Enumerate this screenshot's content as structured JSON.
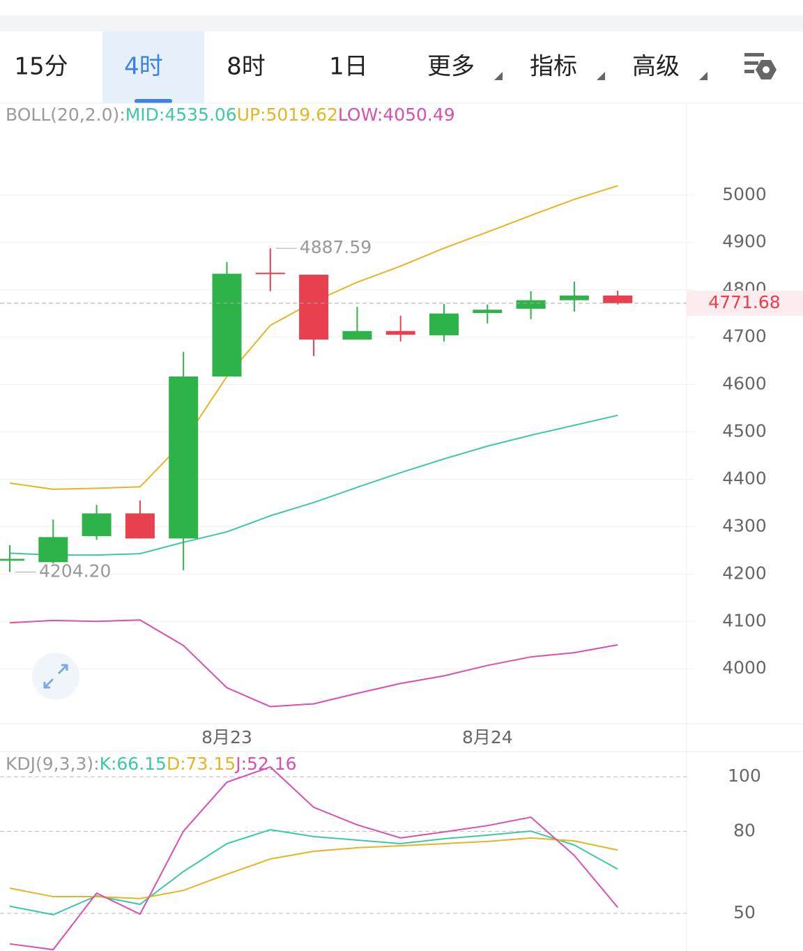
{
  "tabs": {
    "items": [
      "15分",
      "4时",
      "8时",
      "1日",
      "更多",
      "指标",
      "高级"
    ],
    "active": 1,
    "dropdown": [
      false,
      false,
      false,
      false,
      true,
      true,
      true
    ]
  },
  "chart_data": [
    {
      "type": "candlestick",
      "header": [
        "BOLL(20,2.0):",
        "MID:4535.06",
        "UP:5019.62",
        "LOW:4050.49"
      ],
      "header_color": "#9a9a9a",
      "categories": [
        null,
        null,
        null,
        null,
        null,
        "8月23",
        null,
        null,
        null,
        null,
        null,
        "8月24",
        null,
        null,
        null
      ],
      "open": [
        4228,
        4225,
        4280,
        4328,
        4275,
        4617,
        4836,
        4832,
        4695,
        4713,
        4704,
        4751,
        4760,
        4778,
        4788
      ],
      "high": [
        4261,
        4315,
        4346,
        4355,
        4669,
        4859,
        4887.59,
        4832,
        4764,
        4745,
        4770,
        4769,
        4797,
        4817,
        4798
      ],
      "low": [
        4204.2,
        4222,
        4272,
        4275,
        4208,
        4617,
        4797,
        4660,
        4695,
        4691,
        4691,
        4729,
        4738,
        4754,
        4769
      ],
      "close": [
        4232,
        4278,
        4328,
        4275,
        4617,
        4834,
        4833,
        4695,
        4713,
        4705,
        4750,
        4758,
        4778,
        4788,
        4771.68
      ],
      "up_color": "#2db34a",
      "down_color": "#e8404f",
      "series": [
        {
          "name": "MID",
          "color": "#3cc8a8",
          "values": [
            4244,
            4240,
            4240,
            4243,
            4267,
            4289,
            4323,
            4351,
            4383,
            4414,
            4443,
            4470,
            4493,
            4514,
            4535.06
          ]
        },
        {
          "name": "UP",
          "color": "#e6b422",
          "values": [
            4392,
            4379,
            4381,
            4384,
            4479,
            4617,
            4725,
            4775,
            4816,
            4850,
            4888,
            4922,
            4957,
            4991,
            5019.62
          ]
        },
        {
          "name": "LOW",
          "color": "#d84fb0",
          "values": [
            4097,
            4102,
            4100,
            4103,
            4049,
            3960,
            3920,
            3926,
            3948,
            3969,
            3985,
            4007,
            4025,
            4034,
            4050.49
          ]
        }
      ],
      "annotations": [
        {
          "label": "4887.59",
          "value": 4887.59
        },
        {
          "label": "4204.20",
          "value": 4204.2
        }
      ],
      "ylim": [
        3884,
        5194
      ],
      "yticks": [
        4000,
        4100,
        4200,
        4300,
        4400,
        4500,
        4600,
        4700,
        4800,
        4900,
        5000
      ],
      "grid": true
    },
    {
      "type": "line",
      "header": [
        "KDJ(9,3,3):",
        "K:66.15",
        "D:73.15",
        "J:52.16"
      ],
      "header_color": "#9a9a9a",
      "series": [
        {
          "name": "K",
          "color": "#3cc8a8",
          "values": [
            52.6,
            49.5,
            56.4,
            53.3,
            65.3,
            75.5,
            80.6,
            78.1,
            76.8,
            75.5,
            77.3,
            78.6,
            80.1,
            75.0,
            66.15
          ]
        },
        {
          "name": "D",
          "color": "#e6b422",
          "values": [
            59.2,
            56.1,
            56.1,
            55.4,
            58.4,
            64.3,
            69.9,
            72.7,
            74.0,
            74.7,
            75.5,
            76.3,
            77.6,
            76.5,
            73.15
          ]
        },
        {
          "name": "J",
          "color": "#d84fb0",
          "values": [
            38.8,
            36.7,
            57.4,
            49.7,
            80.1,
            98.0,
            103.6,
            88.8,
            82.4,
            77.6,
            79.8,
            82.1,
            85.2,
            71.2,
            52.16
          ]
        }
      ],
      "ylim": [
        36.2,
        108.7
      ],
      "yticks": [
        50,
        80,
        100
      ],
      "grid": "dashed"
    }
  ]
}
